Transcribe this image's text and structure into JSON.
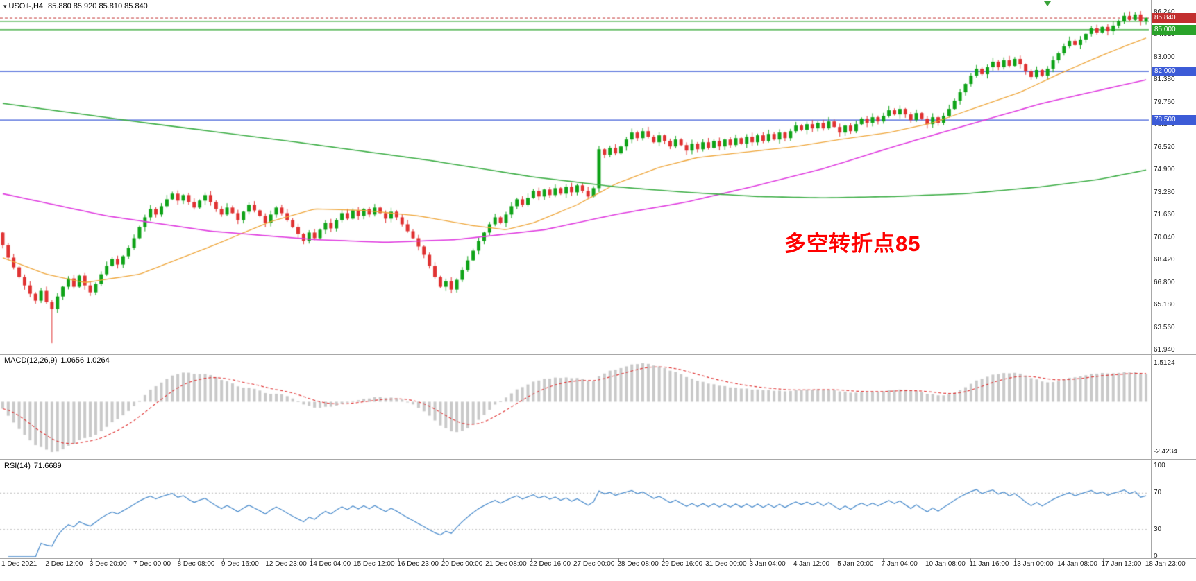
{
  "header": {
    "symbol_timeframe": "USOil-,H4",
    "ohlc": "85.880 85.920 85.810 85.840"
  },
  "annotation": {
    "text": "多空转折点85",
    "color": "#ff0000"
  },
  "indicators": {
    "macd": {
      "label": "MACD(12,26,9)",
      "values": "1.0656 1.0264",
      "axis": [
        "1.5124",
        "-2.4234"
      ]
    },
    "rsi": {
      "label": "RSI(14)",
      "values": "71.6689",
      "axis": [
        "100",
        "70",
        "30",
        "0"
      ],
      "levels": [
        70,
        30
      ]
    }
  },
  "price_axis": {
    "labels": [
      "86.240",
      "84.620",
      "83.000",
      "81.380",
      "79.760",
      "78.140",
      "76.520",
      "74.900",
      "73.280",
      "71.660",
      "70.040",
      "68.420",
      "66.800",
      "65.180",
      "63.560",
      "61.940"
    ]
  },
  "time_axis": {
    "labels": [
      "1 Dec 2021",
      "2 Dec 12:00",
      "3 Dec 20:00",
      "7 Dec 00:00",
      "8 Dec 08:00",
      "9 Dec 16:00",
      "12 Dec 23:00",
      "14 Dec 04:00",
      "15 Dec 12:00",
      "16 Dec 23:00",
      "20 Dec 00:00",
      "21 Dec 08:00",
      "22 Dec 16:00",
      "27 Dec 00:00",
      "28 Dec 08:00",
      "29 Dec 16:00",
      "31 Dec 00:00",
      "3 Jan 04:00",
      "4 Jan 12:00",
      "5 Jan 20:00",
      "7 Jan 04:00",
      "10 Jan 08:00",
      "11 Jan 16:00",
      "13 Jan 00:00",
      "14 Jan 08:00",
      "17 Jan 12:00",
      "18 Jan 23:00"
    ]
  },
  "chart_data": {
    "type": "candlestick",
    "symbol": "USOil-",
    "timeframe": "H4",
    "current_bar": {
      "open": 85.88,
      "high": 85.92,
      "low": 85.81,
      "close": 85.84
    },
    "candle_colors": {
      "up": "#0fa318",
      "down": "#e03232"
    },
    "price": {
      "first_open": 70.4,
      "price_range_view": [
        61.64,
        87.14
      ],
      "special_lows": {
        "9": 62.43
      },
      "closes": [
        69.5,
        68.6,
        67.9,
        67.2,
        66.6,
        66.0,
        65.5,
        66.2,
        65.4,
        64.9,
        65.8,
        66.5,
        67.1,
        66.5,
        67.3,
        66.6,
        66.1,
        66.7,
        67.4,
        68.0,
        68.5,
        68.1,
        68.7,
        69.3,
        70.0,
        70.8,
        71.5,
        72.1,
        71.7,
        72.3,
        72.8,
        73.2,
        72.7,
        73.1,
        72.6,
        72.2,
        72.7,
        73.1,
        72.6,
        72.1,
        71.7,
        72.2,
        71.8,
        71.3,
        71.9,
        72.4,
        72.0,
        71.6,
        71.1,
        71.7,
        72.2,
        71.8,
        71.3,
        70.8,
        70.3,
        69.8,
        70.4,
        70.0,
        70.6,
        71.1,
        70.7,
        71.3,
        71.8,
        71.4,
        72.0,
        71.6,
        72.1,
        71.7,
        72.2,
        71.8,
        71.4,
        71.9,
        71.5,
        71.0,
        70.5,
        70.0,
        69.4,
        68.8,
        68.0,
        67.2,
        66.5,
        66.9,
        66.3,
        67.0,
        67.7,
        68.4,
        69.1,
        69.8,
        70.4,
        71.0,
        71.5,
        71.1,
        71.7,
        72.3,
        72.8,
        72.4,
        72.9,
        73.4,
        73.0,
        73.5,
        73.1,
        73.6,
        73.2,
        73.7,
        73.3,
        73.8,
        73.4,
        73.0,
        73.6,
        76.4,
        76.0,
        76.5,
        76.1,
        76.6,
        77.1,
        77.6,
        77.2,
        77.7,
        77.3,
        76.9,
        77.4,
        77.0,
        76.6,
        77.1,
        76.7,
        76.3,
        76.8,
        76.4,
        76.9,
        76.5,
        77.0,
        76.6,
        77.1,
        76.7,
        77.2,
        76.8,
        77.3,
        76.9,
        77.4,
        77.0,
        77.5,
        77.1,
        77.6,
        77.2,
        77.7,
        78.1,
        77.8,
        78.2,
        77.9,
        78.3,
        77.9,
        78.4,
        78.0,
        77.6,
        78.1,
        77.7,
        78.2,
        78.6,
        78.3,
        78.7,
        78.4,
        78.8,
        79.2,
        78.9,
        79.3,
        78.9,
        78.5,
        79.0,
        78.6,
        78.2,
        78.7,
        78.3,
        78.8,
        79.3,
        79.9,
        80.5,
        81.1,
        81.7,
        82.2,
        81.8,
        82.3,
        82.7,
        82.3,
        82.8,
        82.4,
        82.9,
        82.5,
        82.0,
        81.6,
        82.1,
        81.7,
        82.2,
        82.8,
        83.3,
        83.8,
        84.2,
        83.9,
        84.3,
        84.7,
        85.1,
        84.8,
        85.2,
        84.9,
        85.3,
        85.6,
        86.0,
        85.7,
        86.1,
        85.6,
        85.84
      ]
    },
    "h_lines": [
      {
        "value": 85.6,
        "color": "#2aa32a",
        "label": null
      },
      {
        "value": 85.0,
        "color": "#2aa32a",
        "label": "85.000"
      },
      {
        "value": 82.0,
        "color": "#3c5bd7",
        "label": "82.000"
      },
      {
        "value": 78.5,
        "color": "#3c5bd7",
        "label": "78.500"
      }
    ],
    "bid_marker": {
      "value": 85.84,
      "label": "85.840",
      "color": "#c22f2f"
    },
    "moving_averages": [
      {
        "name": "fast-ma-orange",
        "color": "#efa63a",
        "width": 1.3,
        "points": [
          [
            0,
            68.6
          ],
          [
            8,
            67.4
          ],
          [
            15,
            66.8
          ],
          [
            25,
            67.4
          ],
          [
            38,
            69.4
          ],
          [
            49,
            71.2
          ],
          [
            57,
            72.1
          ],
          [
            66,
            72.0
          ],
          [
            76,
            71.6
          ],
          [
            86,
            70.9
          ],
          [
            92,
            70.6
          ],
          [
            97,
            71.1
          ],
          [
            105,
            72.4
          ],
          [
            112,
            73.9
          ],
          [
            120,
            75.1
          ],
          [
            127,
            75.8
          ],
          [
            136,
            76.2
          ],
          [
            145,
            76.6
          ],
          [
            153,
            77.1
          ],
          [
            162,
            77.6
          ],
          [
            170,
            78.3
          ],
          [
            178,
            79.4
          ],
          [
            186,
            80.5
          ],
          [
            193,
            81.8
          ],
          [
            200,
            83.0
          ],
          [
            205,
            83.8
          ],
          [
            209,
            84.4
          ]
        ]
      },
      {
        "name": "mid-ma-magenta",
        "color": "#e03ce0",
        "width": 1.6,
        "points": [
          [
            0,
            73.2
          ],
          [
            19,
            71.6
          ],
          [
            38,
            70.5
          ],
          [
            57,
            69.9
          ],
          [
            70,
            69.7
          ],
          [
            83,
            69.9
          ],
          [
            99,
            70.6
          ],
          [
            112,
            71.7
          ],
          [
            125,
            72.6
          ],
          [
            138,
            73.8
          ],
          [
            150,
            75.0
          ],
          [
            163,
            76.6
          ],
          [
            176,
            78.1
          ],
          [
            190,
            79.7
          ],
          [
            200,
            80.6
          ],
          [
            209,
            81.4
          ]
        ]
      },
      {
        "name": "slow-ma-green",
        "color": "#3dae46",
        "width": 1.6,
        "points": [
          [
            0,
            79.7
          ],
          [
            26,
            78.3
          ],
          [
            52,
            77.0
          ],
          [
            78,
            75.6
          ],
          [
            97,
            74.4
          ],
          [
            112,
            73.7
          ],
          [
            125,
            73.3
          ],
          [
            138,
            73.0
          ],
          [
            150,
            72.9
          ],
          [
            163,
            73.0
          ],
          [
            176,
            73.2
          ],
          [
            190,
            73.7
          ],
          [
            200,
            74.2
          ],
          [
            209,
            74.9
          ]
        ]
      }
    ],
    "macd": {
      "fast": 12,
      "slow": 26,
      "signal": 9,
      "histogram_color": "#c9c9c9",
      "signal_color": "#e03232",
      "axis_range": [
        -2.4234,
        1.5124
      ]
    },
    "rsi": {
      "period": 14,
      "color": "#4f8fce",
      "axis_range": [
        0,
        100
      ]
    }
  }
}
